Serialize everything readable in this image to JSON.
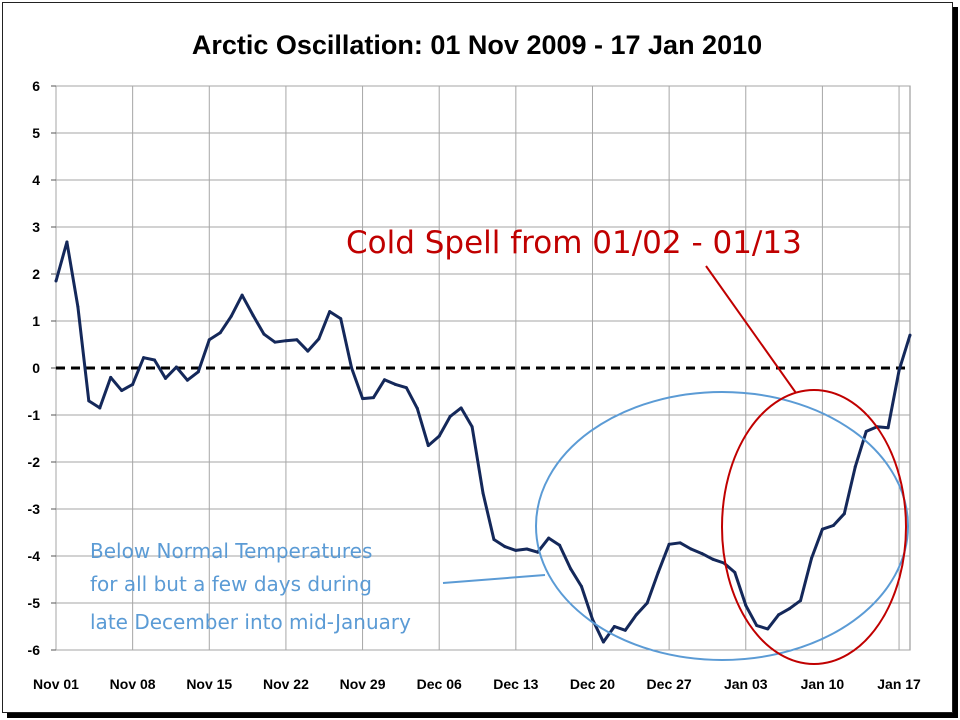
{
  "chart_data": {
    "type": "line",
    "title": "Arctic Oscillation: 01 Nov 2009 - 17 Jan 2010",
    "xlabel": "",
    "ylabel": "",
    "ylim": [
      -6,
      6
    ],
    "y_ticks": [
      "6",
      "5",
      "4",
      "3",
      "2",
      "1",
      "0",
      "-1",
      "-2",
      "-3",
      "-4",
      "-5",
      "-6"
    ],
    "x_ticks": [
      "Nov 01",
      "Nov 08",
      "Nov 15",
      "Nov 22",
      "Nov 29",
      "Dec 06",
      "Dec 13",
      "Dec 20",
      "Dec 27",
      "Jan 03",
      "Jan 10",
      "Jan 17"
    ],
    "grid": true,
    "zero_line_style": "dashed",
    "series_color": "#14285a",
    "series": [
      {
        "values": [
          1.85,
          2.68,
          1.3,
          -0.7,
          -0.85,
          -0.2,
          -0.48,
          -0.35,
          0.22,
          0.17,
          -0.22,
          0.02,
          -0.26,
          -0.08,
          0.6,
          0.75,
          1.1,
          1.55,
          1.12,
          0.72,
          0.55,
          0.58,
          0.6,
          0.36,
          0.62,
          1.2,
          1.05,
          0.0,
          -0.65,
          -0.63,
          -0.25,
          -0.35,
          -0.42,
          -0.86,
          -1.65,
          -1.45,
          -1.03,
          -0.85,
          -1.25,
          -2.66,
          -3.65,
          -3.8,
          -3.88,
          -3.85,
          -3.92,
          -3.62,
          -3.77,
          -4.27,
          -4.65,
          -5.35,
          -5.83,
          -5.5,
          -5.58,
          -5.25,
          -5.0,
          -4.35,
          -3.75,
          -3.72,
          -3.85,
          -3.95,
          -4.07,
          -4.15,
          -4.35,
          -5.05,
          -5.48,
          -5.55,
          -5.25,
          -5.12,
          -4.95,
          -4.05,
          -3.43,
          -3.35,
          -3.1,
          -2.1,
          -1.35,
          -1.25,
          -1.27,
          -0.05,
          0.7
        ]
      }
    ],
    "annotations": {
      "cold_spell": "Cold Spell from 01/02 - 01/13",
      "below_normal": [
        "Below Normal Temperatures",
        "for all but a few days during",
        "late December  into mid-January"
      ]
    },
    "colors": {
      "red": "#c00000",
      "blue": "#5b9bd5",
      "line": "#14285a"
    }
  }
}
